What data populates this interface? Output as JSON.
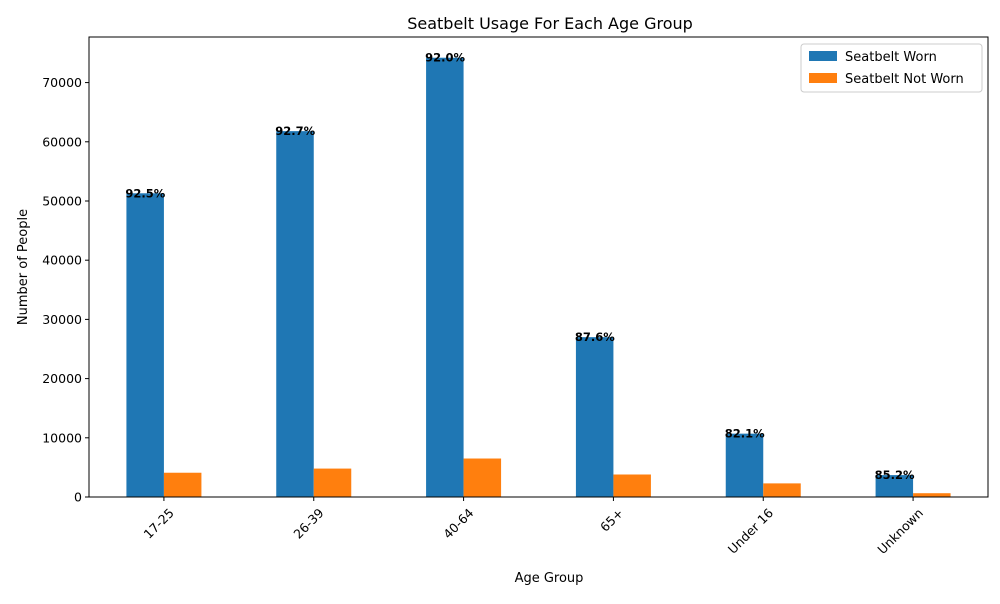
{
  "chart_data": {
    "type": "bar",
    "title": "Seatbelt Usage For Each Age Group",
    "xlabel": "Age Group",
    "ylabel": "Number of People",
    "categories": [
      "17-25",
      "26-39",
      "40-64",
      "65+",
      "Under 16",
      "Unknown"
    ],
    "series": [
      {
        "name": "Seatbelt Worn",
        "color": "#1f77b4",
        "values": [
          51300,
          61800,
          74200,
          27000,
          10700,
          3700
        ]
      },
      {
        "name": "Seatbelt Not Worn",
        "color": "#ff7f0e",
        "values": [
          4100,
          4800,
          6500,
          3800,
          2300,
          640
        ]
      }
    ],
    "bar_annotations": [
      "92.5%",
      "92.7%",
      "92.0%",
      "87.6%",
      "82.1%",
      "85.2%"
    ],
    "ylim": [
      0,
      77700
    ],
    "yticks": [
      0,
      10000,
      20000,
      30000,
      40000,
      50000,
      60000,
      70000
    ],
    "ytick_labels": [
      "0",
      "10000",
      "20000",
      "30000",
      "40000",
      "50000",
      "60000",
      "70000"
    ],
    "xtick_rotation": 45,
    "grid": false,
    "legend_position": "top-right"
  }
}
